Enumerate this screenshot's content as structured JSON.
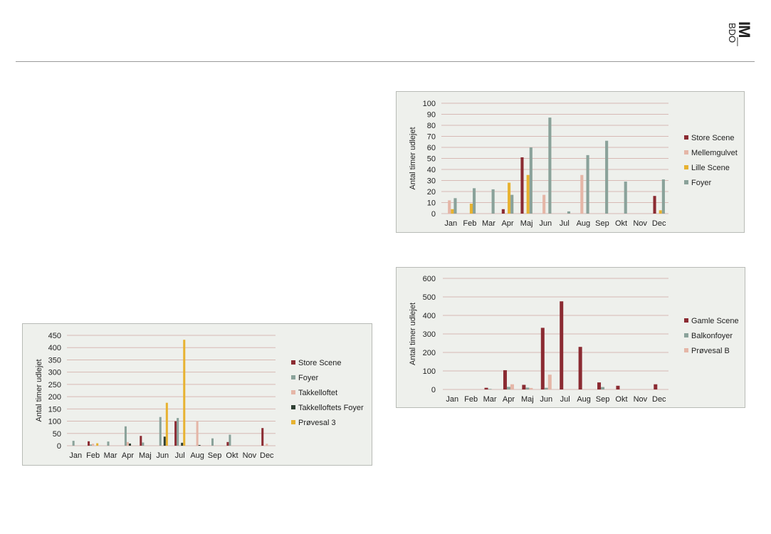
{
  "logo": {
    "big": "IM_",
    "small": "BDO"
  },
  "colors": {
    "store_scene": "#8b2b32",
    "foyer": "#8aa29a",
    "mellemgulvet": "#e5b6a7",
    "lille_scene": "#e7b231",
    "takkelloftets_foyer": "#2f4034",
    "balkonfoyer": "#8aa29a",
    "grid": "#d7b9b4",
    "panel_bg": "#eef0ec"
  },
  "chart_data": [
    {
      "id": "chart_top",
      "type": "bar",
      "ylabel": "Antal timer udlejet",
      "ylim": [
        0,
        100
      ],
      "yticks": [
        0,
        10,
        20,
        30,
        40,
        50,
        60,
        70,
        80,
        90,
        100
      ],
      "categories": [
        "Jan",
        "Feb",
        "Mar",
        "Apr",
        "Maj",
        "Jun",
        "Jul",
        "Aug",
        "Sep",
        "Okt",
        "Nov",
        "Dec"
      ],
      "legend_position": "right",
      "grid": true,
      "series": [
        {
          "name": "Store Scene",
          "color": "#8b2b32",
          "values": [
            0,
            0,
            0,
            4,
            51,
            0,
            0,
            0,
            0,
            0,
            0,
            16
          ]
        },
        {
          "name": "Mellemgulvet",
          "color": "#e5b6a7",
          "values": [
            12,
            0,
            0,
            0,
            0,
            17,
            0,
            35,
            0,
            0,
            0,
            0
          ]
        },
        {
          "name": "Lille Scene",
          "color": "#e7b231",
          "values": [
            4,
            9,
            0,
            28,
            35,
            0,
            0,
            0,
            0,
            0,
            0,
            3
          ]
        },
        {
          "name": "Foyer",
          "color": "#8aa29a",
          "values": [
            14,
            23,
            22,
            17,
            60,
            87,
            2,
            53,
            66,
            29,
            0,
            31
          ]
        }
      ]
    },
    {
      "id": "chart_mid",
      "type": "bar",
      "ylabel": "Antal timer udlejet",
      "ylim": [
        0,
        600
      ],
      "yticks": [
        0,
        100,
        200,
        300,
        400,
        500,
        600
      ],
      "categories": [
        "Jan",
        "Feb",
        "Mar",
        "Apr",
        "Maj",
        "Jun",
        "Jul",
        "Aug",
        "Sep",
        "Okt",
        "Nov",
        "Dec"
      ],
      "legend_position": "right",
      "grid": true,
      "series": [
        {
          "name": "Gamle Scene",
          "color": "#8b2b32",
          "values": [
            0,
            0,
            9,
            104,
            25,
            333,
            476,
            230,
            38,
            20,
            0,
            28
          ]
        },
        {
          "name": "Balkonfoyer",
          "color": "#8aa29a",
          "values": [
            0,
            0,
            3,
            14,
            10,
            9,
            0,
            0,
            13,
            0,
            0,
            0
          ]
        },
        {
          "name": "Prøvesal B",
          "color": "#e5b6a7",
          "values": [
            0,
            0,
            0,
            28,
            8,
            80,
            0,
            0,
            0,
            0,
            0,
            0
          ]
        }
      ]
    },
    {
      "id": "chart_bottom",
      "type": "bar",
      "ylabel": "Antal timer udlejet",
      "ylim": [
        0,
        450
      ],
      "yticks": [
        0,
        50,
        100,
        150,
        200,
        250,
        300,
        350,
        400,
        450
      ],
      "categories": [
        "Jan",
        "Feb",
        "Mar",
        "Apr",
        "Maj",
        "Jun",
        "Jul",
        "Aug",
        "Sep",
        "Okt",
        "Nov",
        "Dec"
      ],
      "legend_position": "right",
      "grid": true,
      "series": [
        {
          "name": "Store Scene",
          "color": "#8b2b32",
          "values": [
            0,
            18,
            0,
            0,
            40,
            0,
            100,
            0,
            0,
            15,
            0,
            72
          ]
        },
        {
          "name": "Foyer",
          "color": "#8aa29a",
          "values": [
            20,
            5,
            17,
            79,
            13,
            117,
            113,
            0,
            30,
            45,
            0,
            0
          ]
        },
        {
          "name": "Takkelloftet",
          "color": "#e5b6a7",
          "values": [
            0,
            8,
            0,
            15,
            0,
            0,
            0,
            100,
            0,
            0,
            0,
            8
          ]
        },
        {
          "name": "Takkelloftets Foyer",
          "color": "#2f4034",
          "values": [
            0,
            0,
            0,
            9,
            0,
            37,
            12,
            3,
            0,
            0,
            0,
            0
          ]
        },
        {
          "name": "Prøvesal 3",
          "color": "#e7b231",
          "values": [
            0,
            10,
            0,
            0,
            0,
            175,
            432,
            0,
            0,
            0,
            0,
            0
          ]
        }
      ]
    }
  ]
}
